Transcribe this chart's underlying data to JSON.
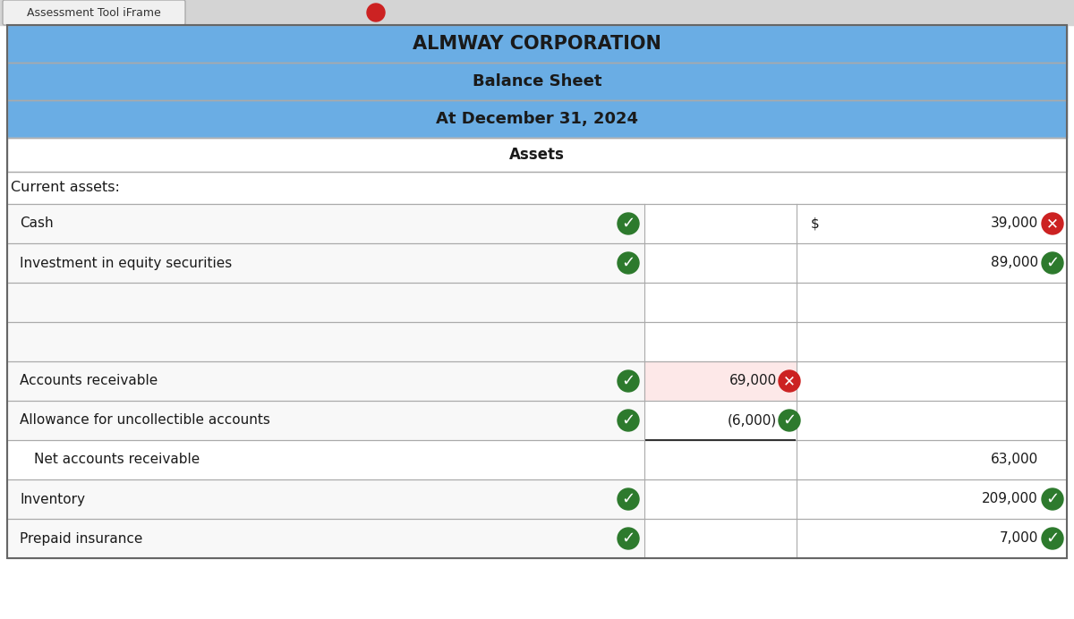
{
  "title1": "ALMWAY CORPORATION",
  "title2": "Balance Sheet",
  "title3": "At December 31, 2024",
  "section_header": "Assets",
  "current_assets_label": "Current assets:",
  "header_bg": "#6aade4",
  "header_bg_dark": "#5a9dd4",
  "assets_header_bg": "#ffffff",
  "row_bg_light": "#f0f8f0",
  "row_bg_white": "#ffffff",
  "row_bg_pink": "#fde8e8",
  "browser_tab_color": "#e8e8e8",
  "browser_tab_text": "Assessment Tool iFrame",
  "rows": [
    {
      "label": "Cash",
      "indent": false,
      "col1_value": "",
      "col1_icon": "check_green",
      "col1_bg": "white",
      "col2_prefix": "$",
      "col2_value": "39,000",
      "col2_icon": "x_red",
      "col2_bg": "white"
    },
    {
      "label": "Investment in equity securities",
      "indent": false,
      "col1_value": "",
      "col1_icon": "check_green",
      "col1_bg": "white",
      "col2_prefix": "",
      "col2_value": "89,000",
      "col2_icon": "check_green",
      "col2_bg": "white"
    },
    {
      "label": "",
      "indent": false,
      "col1_value": "",
      "col1_icon": null,
      "col1_bg": "white",
      "col2_prefix": "",
      "col2_value": "",
      "col2_icon": null,
      "col2_bg": "white"
    },
    {
      "label": "",
      "indent": false,
      "col1_value": "",
      "col1_icon": null,
      "col1_bg": "white",
      "col2_prefix": "",
      "col2_value": "",
      "col2_icon": null,
      "col2_bg": "white"
    },
    {
      "label": "Accounts receivable",
      "indent": false,
      "col1_value": "69,000",
      "col1_icon": "x_red",
      "col1_bg": "pink",
      "col2_prefix": "",
      "col2_value": "",
      "col2_icon": null,
      "col2_bg": "white",
      "check_icon": "check_green"
    },
    {
      "label": "Allowance for uncollectible accounts",
      "indent": false,
      "col1_value": "(6,000)",
      "col1_icon": "check_green",
      "col1_bg": "white",
      "col2_prefix": "",
      "col2_value": "",
      "col2_icon": null,
      "col2_bg": "white",
      "check_icon": "check_green",
      "col1_border_bottom": true
    },
    {
      "label": "Net accounts receivable",
      "indent": true,
      "col1_value": "",
      "col1_icon": null,
      "col1_bg": "white",
      "col2_prefix": "",
      "col2_value": "63,000",
      "col2_icon": null,
      "col2_bg": "white"
    },
    {
      "label": "Inventory",
      "indent": false,
      "col1_value": "",
      "col1_icon": "check_green",
      "col1_bg": "white",
      "col2_prefix": "",
      "col2_value": "209,000",
      "col2_icon": "check_green",
      "col2_bg": "white"
    },
    {
      "label": "Prepaid insurance",
      "indent": false,
      "col1_value": "",
      "col1_icon": "check_green",
      "col1_bg": "white",
      "col2_prefix": "",
      "col2_value": "7,000",
      "col2_icon": "check_green",
      "col2_bg": "white"
    }
  ]
}
